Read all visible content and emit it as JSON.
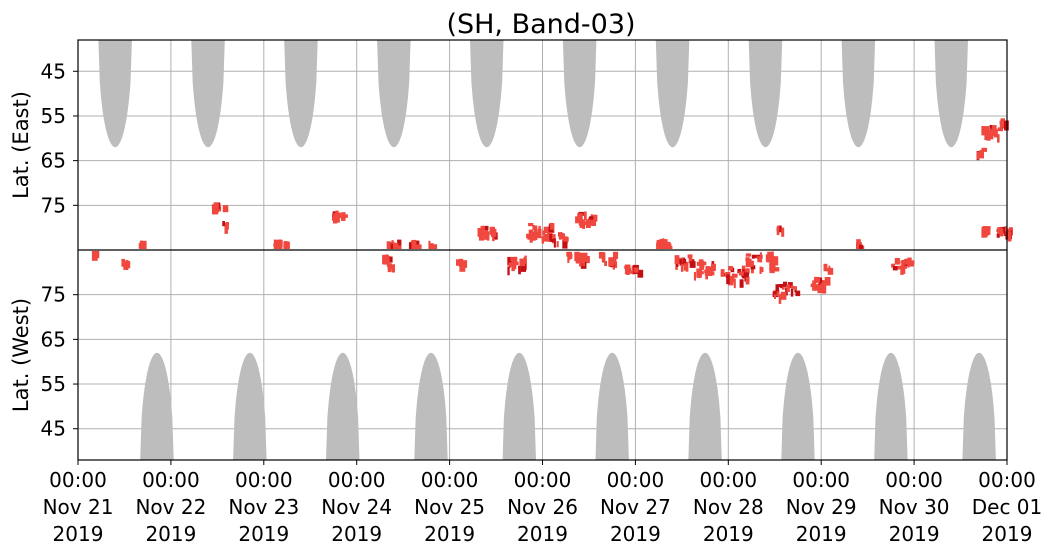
{
  "chart_data": {
    "type": "heatmap",
    "title": "(SH, Band-03)",
    "ylabel_top": "Lat. (East)",
    "ylabel_bottom": "Lat. (West)",
    "y_ticks_top": [
      "45",
      "55",
      "65",
      "75"
    ],
    "y_ticks_bottom": [
      "75",
      "65",
      "55",
      "45"
    ],
    "x_ticks": [
      {
        "time": "00:00",
        "date": "Nov 21",
        "year": "2019"
      },
      {
        "time": "00:00",
        "date": "Nov 22",
        "year": "2019"
      },
      {
        "time": "00:00",
        "date": "Nov 23",
        "year": "2019"
      },
      {
        "time": "00:00",
        "date": "Nov 24",
        "year": "2019"
      },
      {
        "time": "00:00",
        "date": "Nov 25",
        "year": "2019"
      },
      {
        "time": "00:00",
        "date": "Nov 26",
        "year": "2019"
      },
      {
        "time": "00:00",
        "date": "Nov 27",
        "year": "2019"
      },
      {
        "time": "00:00",
        "date": "Nov 28",
        "year": "2019"
      },
      {
        "time": "00:00",
        "date": "Nov 29",
        "year": "2019"
      },
      {
        "time": "00:00",
        "date": "Nov 30",
        "year": "2019"
      },
      {
        "time": "00:00",
        "date": "Dec 01",
        "year": "2019"
      }
    ],
    "x_range": [
      "2019-11-21 00:00",
      "2019-12-01 00:00"
    ],
    "lat_range": [
      38,
      85
    ],
    "grid": true,
    "colors": {
      "coverage_gap": "#bdbdbd",
      "echo_light": "#f0473f",
      "echo_strong": "#c20f14",
      "grid": "#b0b0b0",
      "divider": "#000000"
    },
    "gray_coverage": {
      "top_center_days": [
        0.4,
        1.4,
        2.4,
        3.4,
        4.4,
        5.4,
        6.4,
        7.4,
        8.4,
        9.4
      ],
      "bottom_center_days": [
        0.85,
        1.85,
        2.85,
        3.8,
        4.75,
        5.75,
        6.75,
        7.75,
        8.75,
        9.7
      ],
      "half_width_days": 0.18,
      "min_lat_top": 62,
      "min_lat_bottom": 62
    },
    "echo_patches": [
      {
        "day": 0.17,
        "lat": 84.6,
        "hemi": "W",
        "size": 0.04,
        "strong": false
      },
      {
        "day": 0.5,
        "lat": 82.5,
        "hemi": "W",
        "size": 0.08,
        "strong": false
      },
      {
        "day": 0.65,
        "lat": 84.0,
        "hemi": "E",
        "size": 0.05,
        "strong": false
      },
      {
        "day": 1.5,
        "lat": 75.0,
        "hemi": "E",
        "size": 0.12,
        "strong": false
      },
      {
        "day": 1.58,
        "lat": 79.0,
        "hemi": "E",
        "size": 0.06,
        "strong": true
      },
      {
        "day": 2.15,
        "lat": 83.5,
        "hemi": "E",
        "size": 0.16,
        "strong": false
      },
      {
        "day": 2.8,
        "lat": 76.5,
        "hemi": "E",
        "size": 0.15,
        "strong": false
      },
      {
        "day": 3.3,
        "lat": 83.5,
        "hemi": "W",
        "size": 0.06,
        "strong": false
      },
      {
        "day": 3.35,
        "lat": 84.0,
        "hemi": "E",
        "size": 0.04,
        "strong": false
      },
      {
        "day": 3.4,
        "lat": 84.5,
        "hemi": "E",
        "size": 0.1,
        "strong": false
      },
      {
        "day": 3.35,
        "lat": 82.0,
        "hemi": "W",
        "size": 0.05,
        "strong": false
      },
      {
        "day": 3.6,
        "lat": 84.2,
        "hemi": "E",
        "size": 0.08,
        "strong": false
      },
      {
        "day": 3.8,
        "lat": 84.6,
        "hemi": "E",
        "size": 0.07,
        "strong": false
      },
      {
        "day": 4.1,
        "lat": 82.5,
        "hemi": "W",
        "size": 0.04,
        "strong": false
      },
      {
        "day": 4.4,
        "lat": 80.5,
        "hemi": "E",
        "size": 0.2,
        "strong": false
      },
      {
        "day": 4.7,
        "lat": 82.5,
        "hemi": "W",
        "size": 0.22,
        "strong": false
      },
      {
        "day": 4.95,
        "lat": 80.5,
        "hemi": "E",
        "size": 0.28,
        "strong": false
      },
      {
        "day": 5.15,
        "lat": 82.0,
        "hemi": "E",
        "size": 0.18,
        "strong": true
      },
      {
        "day": 5.35,
        "lat": 83.5,
        "hemi": "W",
        "size": 0.2,
        "strong": false
      },
      {
        "day": 5.45,
        "lat": 77.5,
        "hemi": "E",
        "size": 0.2,
        "strong": false
      },
      {
        "day": 5.7,
        "lat": 83.5,
        "hemi": "W",
        "size": 0.2,
        "strong": false
      },
      {
        "day": 5.95,
        "lat": 81.0,
        "hemi": "W",
        "size": 0.15,
        "strong": false
      },
      {
        "day": 6.3,
        "lat": 83.5,
        "hemi": "E",
        "size": 0.2,
        "strong": false
      },
      {
        "day": 6.5,
        "lat": 83.0,
        "hemi": "W",
        "size": 0.2,
        "strong": true
      },
      {
        "day": 6.75,
        "lat": 81.5,
        "hemi": "W",
        "size": 0.25,
        "strong": false
      },
      {
        "day": 7.05,
        "lat": 80.0,
        "hemi": "W",
        "size": 0.28,
        "strong": true
      },
      {
        "day": 7.35,
        "lat": 83.0,
        "hemi": "W",
        "size": 0.35,
        "strong": false
      },
      {
        "day": 7.6,
        "lat": 76.5,
        "hemi": "W",
        "size": 0.25,
        "strong": true
      },
      {
        "day": 7.95,
        "lat": 78.0,
        "hemi": "W",
        "size": 0.18,
        "strong": false
      },
      {
        "day": 7.55,
        "lat": 79.5,
        "hemi": "E",
        "size": 0.04,
        "strong": false
      },
      {
        "day": 8.05,
        "lat": 81.5,
        "hemi": "W",
        "size": 0.05,
        "strong": false
      },
      {
        "day": 8.4,
        "lat": 84.0,
        "hemi": "E",
        "size": 0.04,
        "strong": false
      },
      {
        "day": 8.85,
        "lat": 82.5,
        "hemi": "W",
        "size": 0.2,
        "strong": false
      },
      {
        "day": 9.75,
        "lat": 80.0,
        "hemi": "E",
        "size": 0.12,
        "strong": false
      },
      {
        "day": 9.95,
        "lat": 80.5,
        "hemi": "E",
        "size": 0.15,
        "strong": true
      },
      {
        "day": 9.82,
        "lat": 58.0,
        "hemi": "E",
        "size": 0.2,
        "strong": false
      },
      {
        "day": 9.95,
        "lat": 56.0,
        "hemi": "E",
        "size": 0.1,
        "strong": true
      },
      {
        "day": 9.7,
        "lat": 62.5,
        "hemi": "E",
        "size": 0.05,
        "strong": false
      }
    ]
  }
}
